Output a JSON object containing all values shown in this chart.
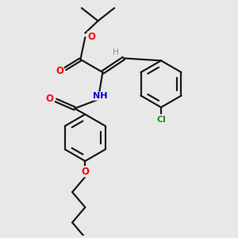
{
  "bg_color": "#e8e8e8",
  "bond_color": "#1a1a1a",
  "O_color": "#ff0000",
  "N_color": "#0000cd",
  "Cl_color": "#228b22",
  "H_color": "#5f9ea0",
  "line_width": 1.6,
  "figsize": [
    3.0,
    3.0
  ],
  "dpi": 100,
  "xlim": [
    0,
    10
  ],
  "ylim": [
    0,
    10
  ]
}
